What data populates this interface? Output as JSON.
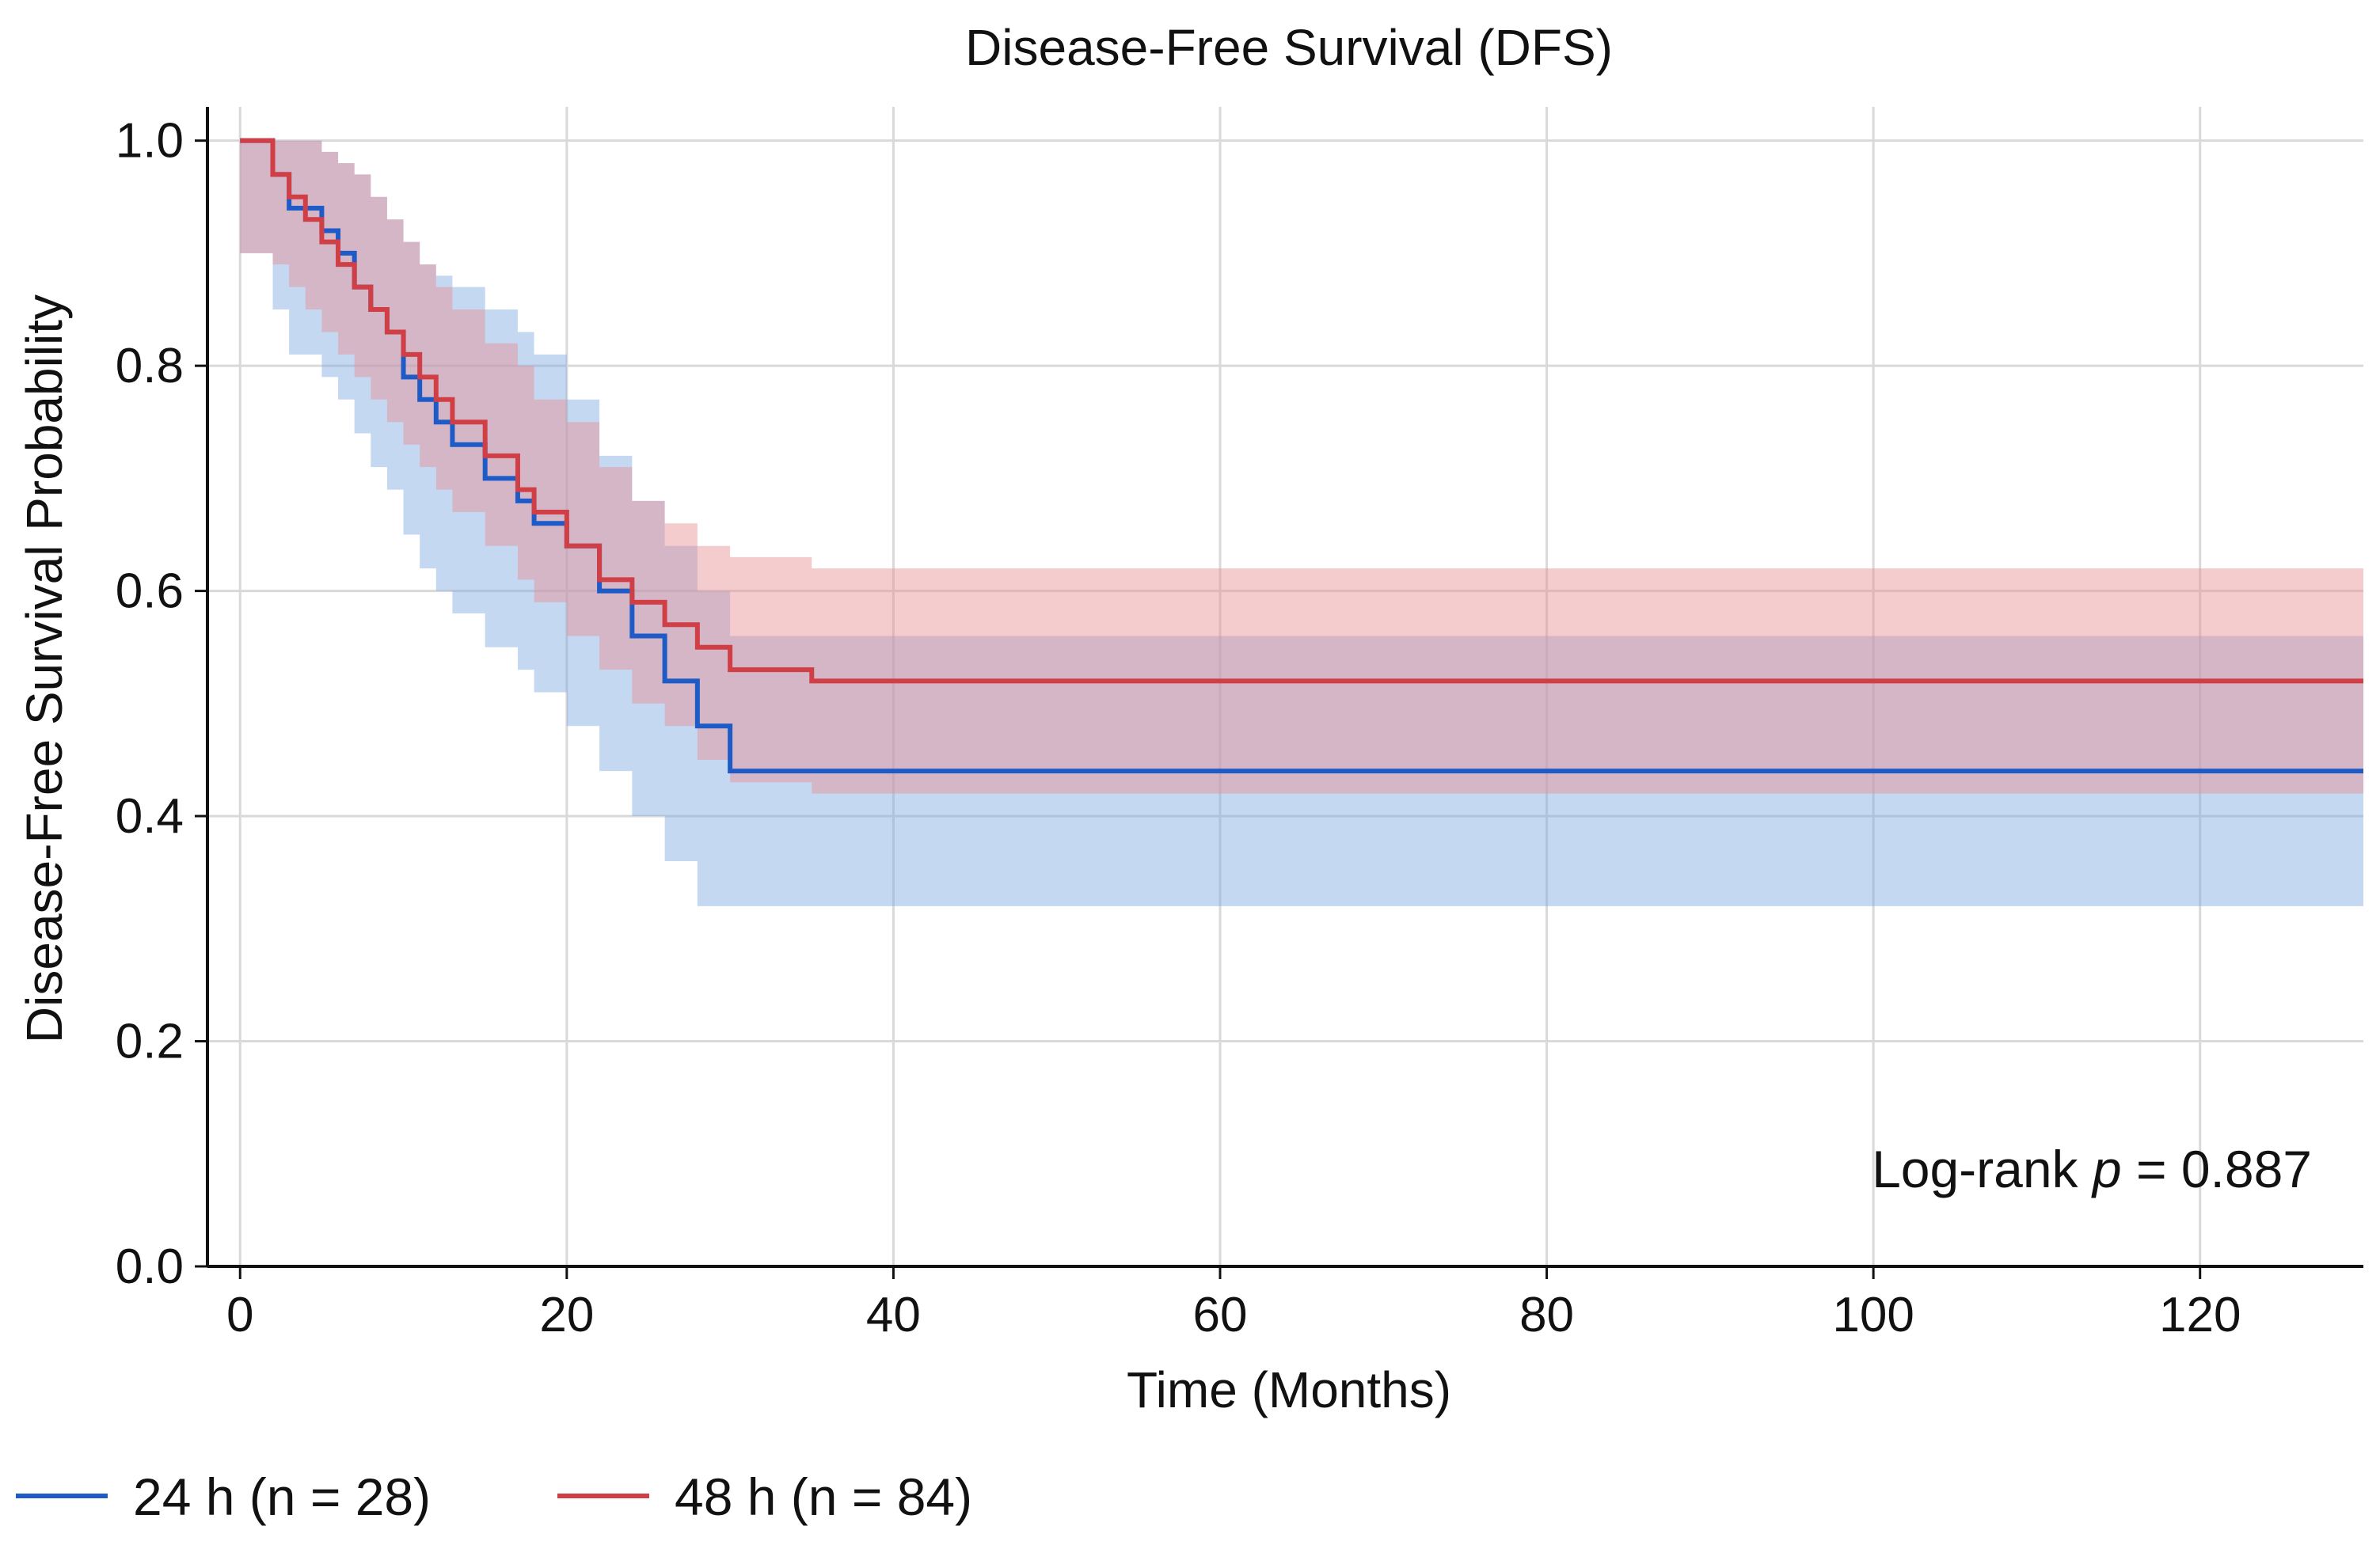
{
  "chart_data": {
    "type": "line",
    "title": "Disease-Free Survival (DFS)",
    "xlabel": "Time (Months)",
    "ylabel": "Disease-Free Survival Probability",
    "xlim": [
      -2,
      130
    ],
    "ylim": [
      0,
      1.03
    ],
    "xticks": [
      "0",
      "20",
      "40",
      "60",
      "80",
      "100",
      "120"
    ],
    "yticks": [
      "0.0",
      "0.2",
      "0.4",
      "0.6",
      "0.8",
      "1.0"
    ],
    "grid": true,
    "legend_position": "bottom",
    "annotation": {
      "prefix": "Log-rank ",
      "p": "p",
      "suffix": " = 0.887"
    },
    "series": [
      {
        "name": "24 h (n = 28)",
        "color": "#1f5bc6",
        "ci_color": "#7fa8e0",
        "x": [
          0,
          2,
          3,
          5,
          6,
          7,
          8,
          9,
          10,
          11,
          12,
          13,
          15,
          17,
          18,
          20,
          22,
          24,
          26,
          28,
          30,
          130
        ],
        "y": [
          1.0,
          0.97,
          0.94,
          0.92,
          0.9,
          0.87,
          0.85,
          0.83,
          0.79,
          0.77,
          0.75,
          0.73,
          0.7,
          0.68,
          0.66,
          0.64,
          0.6,
          0.56,
          0.52,
          0.48,
          0.44,
          0.44
        ],
        "ci_lower": [
          0.9,
          0.85,
          0.81,
          0.79,
          0.77,
          0.74,
          0.71,
          0.69,
          0.65,
          0.62,
          0.6,
          0.58,
          0.55,
          0.53,
          0.51,
          0.48,
          0.44,
          0.4,
          0.36,
          0.32,
          0.32,
          0.32
        ],
        "ci_upper": [
          1.0,
          1.0,
          1.0,
          0.99,
          0.98,
          0.97,
          0.95,
          0.93,
          0.91,
          0.89,
          0.88,
          0.87,
          0.85,
          0.83,
          0.81,
          0.77,
          0.72,
          0.68,
          0.64,
          0.6,
          0.56,
          0.56
        ]
      },
      {
        "name": "48 h (n = 84)",
        "color": "#d03f45",
        "ci_color": "#e88f92",
        "x": [
          0,
          2,
          3,
          4,
          5,
          6,
          7,
          8,
          9,
          10,
          11,
          12,
          13,
          15,
          17,
          18,
          20,
          22,
          24,
          26,
          28,
          30,
          35,
          130
        ],
        "y": [
          1.0,
          0.97,
          0.95,
          0.93,
          0.91,
          0.89,
          0.87,
          0.85,
          0.83,
          0.81,
          0.79,
          0.77,
          0.75,
          0.72,
          0.69,
          0.67,
          0.64,
          0.61,
          0.59,
          0.57,
          0.55,
          0.53,
          0.52,
          0.52
        ],
        "ci_lower": [
          0.9,
          0.89,
          0.87,
          0.85,
          0.83,
          0.81,
          0.79,
          0.77,
          0.75,
          0.73,
          0.71,
          0.69,
          0.67,
          0.64,
          0.61,
          0.59,
          0.56,
          0.53,
          0.5,
          0.48,
          0.45,
          0.43,
          0.42,
          0.42
        ],
        "ci_upper": [
          1.0,
          1.0,
          1.0,
          1.0,
          0.99,
          0.98,
          0.97,
          0.95,
          0.93,
          0.91,
          0.89,
          0.87,
          0.85,
          0.82,
          0.8,
          0.77,
          0.75,
          0.71,
          0.68,
          0.66,
          0.64,
          0.63,
          0.62,
          0.62
        ]
      }
    ]
  }
}
